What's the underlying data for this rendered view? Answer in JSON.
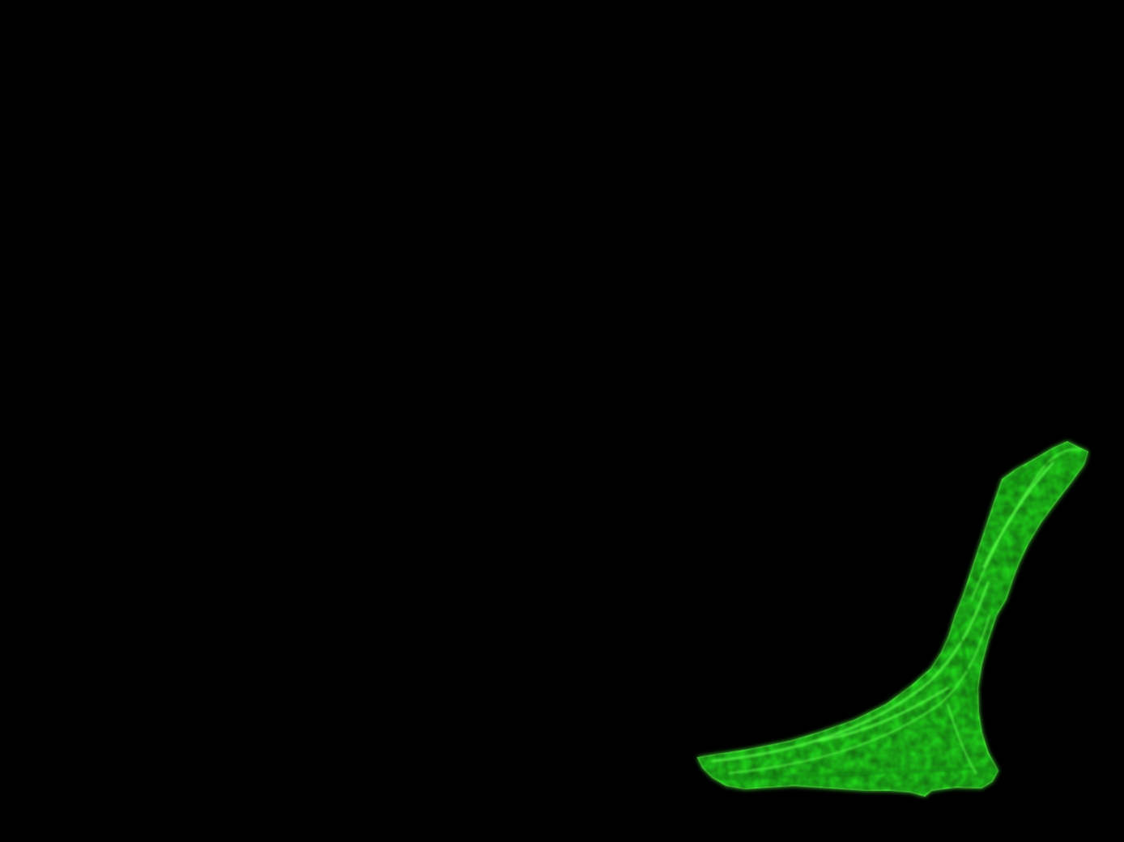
{
  "image": {
    "background_color": "#000000",
    "stain_color": "#22e01c",
    "stain_highlight_color": "#5cff4a",
    "stain_shadow_color": "#0c8a0a"
  }
}
